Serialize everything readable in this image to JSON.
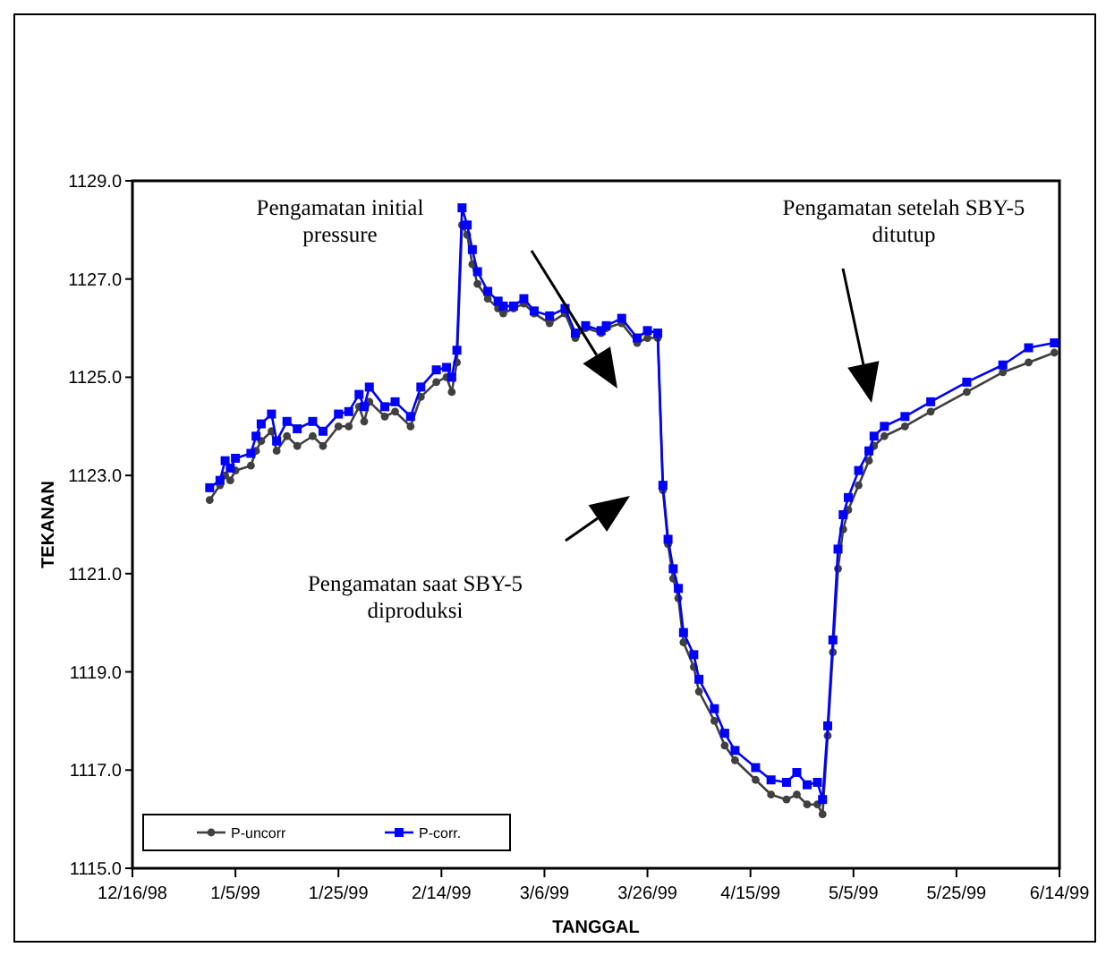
{
  "chart_data": {
    "type": "line",
    "xlabel": "TANGGAL",
    "ylabel": "TEKANAN",
    "xlim": [
      "1998-12-16",
      "1999-06-14"
    ],
    "xticks": [
      {
        "value": "1998-12-16",
        "label": "12/16/98"
      },
      {
        "value": "1999-01-05",
        "label": "1/5/99"
      },
      {
        "value": "1999-01-25",
        "label": "1/25/99"
      },
      {
        "value": "1999-02-14",
        "label": "2/14/99"
      },
      {
        "value": "1999-03-06",
        "label": "3/6/99"
      },
      {
        "value": "1999-03-26",
        "label": "3/26/99"
      },
      {
        "value": "1999-04-15",
        "label": "4/15/99"
      },
      {
        "value": "1999-05-05",
        "label": "5/5/99"
      },
      {
        "value": "1999-05-25",
        "label": "5/25/99"
      },
      {
        "value": "1999-06-14",
        "label": "6/14/99"
      }
    ],
    "ylim": [
      1115,
      1129
    ],
    "yticks": [
      {
        "value": 1115,
        "label": "1115.0"
      },
      {
        "value": 1117,
        "label": "1117.0"
      },
      {
        "value": 1119,
        "label": "1119.0"
      },
      {
        "value": 1121,
        "label": "1121.0"
      },
      {
        "value": 1123,
        "label": "1123.0"
      },
      {
        "value": 1125,
        "label": "1125.0"
      },
      {
        "value": 1127,
        "label": "1127.0"
      },
      {
        "value": 1129,
        "label": "1129.0"
      }
    ],
    "x": [
      "1998-12-31",
      "1999-01-02",
      "1999-01-03",
      "1999-01-04",
      "1999-01-05",
      "1999-01-08",
      "1999-01-09",
      "1999-01-10",
      "1999-01-12",
      "1999-01-13",
      "1999-01-15",
      "1999-01-17",
      "1999-01-20",
      "1999-01-22",
      "1999-01-25",
      "1999-01-27",
      "1999-01-29",
      "1999-01-30",
      "1999-01-31",
      "1999-02-03",
      "1999-02-05",
      "1999-02-08",
      "1999-02-10",
      "1999-02-13",
      "1999-02-15",
      "1999-02-16",
      "1999-02-17",
      "1999-02-18",
      "1999-02-19",
      "1999-02-20",
      "1999-02-21",
      "1999-02-23",
      "1999-02-25",
      "1999-02-26",
      "1999-02-28",
      "1999-03-02",
      "1999-03-04",
      "1999-03-07",
      "1999-03-10",
      "1999-03-12",
      "1999-03-14",
      "1999-03-17",
      "1999-03-18",
      "1999-03-21",
      "1999-03-24",
      "1999-03-26",
      "1999-03-28",
      "1999-03-29",
      "1999-03-30",
      "1999-03-31",
      "1999-04-01",
      "1999-04-02",
      "1999-04-04",
      "1999-04-05",
      "1999-04-08",
      "1999-04-10",
      "1999-04-12",
      "1999-04-16",
      "1999-04-19",
      "1999-04-22",
      "1999-04-24",
      "1999-04-26",
      "1999-04-28",
      "1999-04-29",
      "1999-04-30",
      "1999-05-01",
      "1999-05-02",
      "1999-05-03",
      "1999-05-04",
      "1999-05-06",
      "1999-05-08",
      "1999-05-09",
      "1999-05-11",
      "1999-05-15",
      "1999-05-20",
      "1999-05-27",
      "1999-06-03",
      "1999-06-08",
      "1999-06-13"
    ],
    "series": [
      {
        "name": "P-uncorr",
        "color": "#404040",
        "marker": "circle",
        "values": [
          1122.5,
          1122.8,
          1123.0,
          1122.9,
          1123.1,
          1123.2,
          1123.5,
          1123.7,
          1123.9,
          1123.5,
          1123.8,
          1123.6,
          1123.8,
          1123.6,
          1124.0,
          1124.0,
          1124.4,
          1124.1,
          1124.5,
          1124.2,
          1124.3,
          1124.0,
          1124.6,
          1124.9,
          1125.0,
          1124.7,
          1125.3,
          1128.1,
          1127.9,
          1127.3,
          1126.9,
          1126.6,
          1126.4,
          1126.3,
          1126.4,
          1126.5,
          1126.3,
          1126.1,
          1126.3,
          1125.8,
          1126.0,
          1125.9,
          1126.0,
          1126.1,
          1125.7,
          1125.8,
          1125.8,
          1122.7,
          1121.6,
          1120.9,
          1120.5,
          1119.6,
          1119.1,
          1118.6,
          1118.0,
          1117.5,
          1117.2,
          1116.8,
          1116.5,
          1116.4,
          1116.5,
          1116.3,
          1116.3,
          1116.1,
          1117.7,
          1119.4,
          1121.1,
          1121.9,
          1122.3,
          1122.8,
          1123.3,
          1123.6,
          1123.8,
          1124.0,
          1124.3,
          1124.7,
          1125.1,
          1125.3,
          1125.5
        ]
      },
      {
        "name": "P-corr.",
        "color": "#0000ff",
        "marker": "square",
        "values": [
          1122.75,
          1122.9,
          1123.3,
          1123.15,
          1123.35,
          1123.45,
          1123.8,
          1124.05,
          1124.25,
          1123.7,
          1124.1,
          1123.95,
          1124.1,
          1123.9,
          1124.25,
          1124.3,
          1124.65,
          1124.4,
          1124.8,
          1124.4,
          1124.5,
          1124.2,
          1124.8,
          1125.15,
          1125.2,
          1125.0,
          1125.55,
          1128.45,
          1128.1,
          1127.6,
          1127.15,
          1126.75,
          1126.55,
          1126.45,
          1126.45,
          1126.6,
          1126.35,
          1126.25,
          1126.4,
          1125.9,
          1126.05,
          1125.95,
          1126.05,
          1126.2,
          1125.8,
          1125.95,
          1125.9,
          1122.8,
          1121.7,
          1121.1,
          1120.7,
          1119.8,
          1119.35,
          1118.85,
          1118.25,
          1117.75,
          1117.4,
          1117.05,
          1116.8,
          1116.75,
          1116.95,
          1116.7,
          1116.75,
          1116.4,
          1117.9,
          1119.65,
          1121.5,
          1122.2,
          1122.55,
          1123.1,
          1123.5,
          1123.8,
          1124.0,
          1124.2,
          1124.5,
          1124.9,
          1125.25,
          1125.6,
          1125.7
        ]
      }
    ],
    "legend": "bottom left",
    "grid": false,
    "annotations": [
      "Pengamatan initial pressure",
      "Pengamatan setelah SBY-5 ditutup",
      "Pengamatan saat SBY-5 diproduksi"
    ]
  }
}
